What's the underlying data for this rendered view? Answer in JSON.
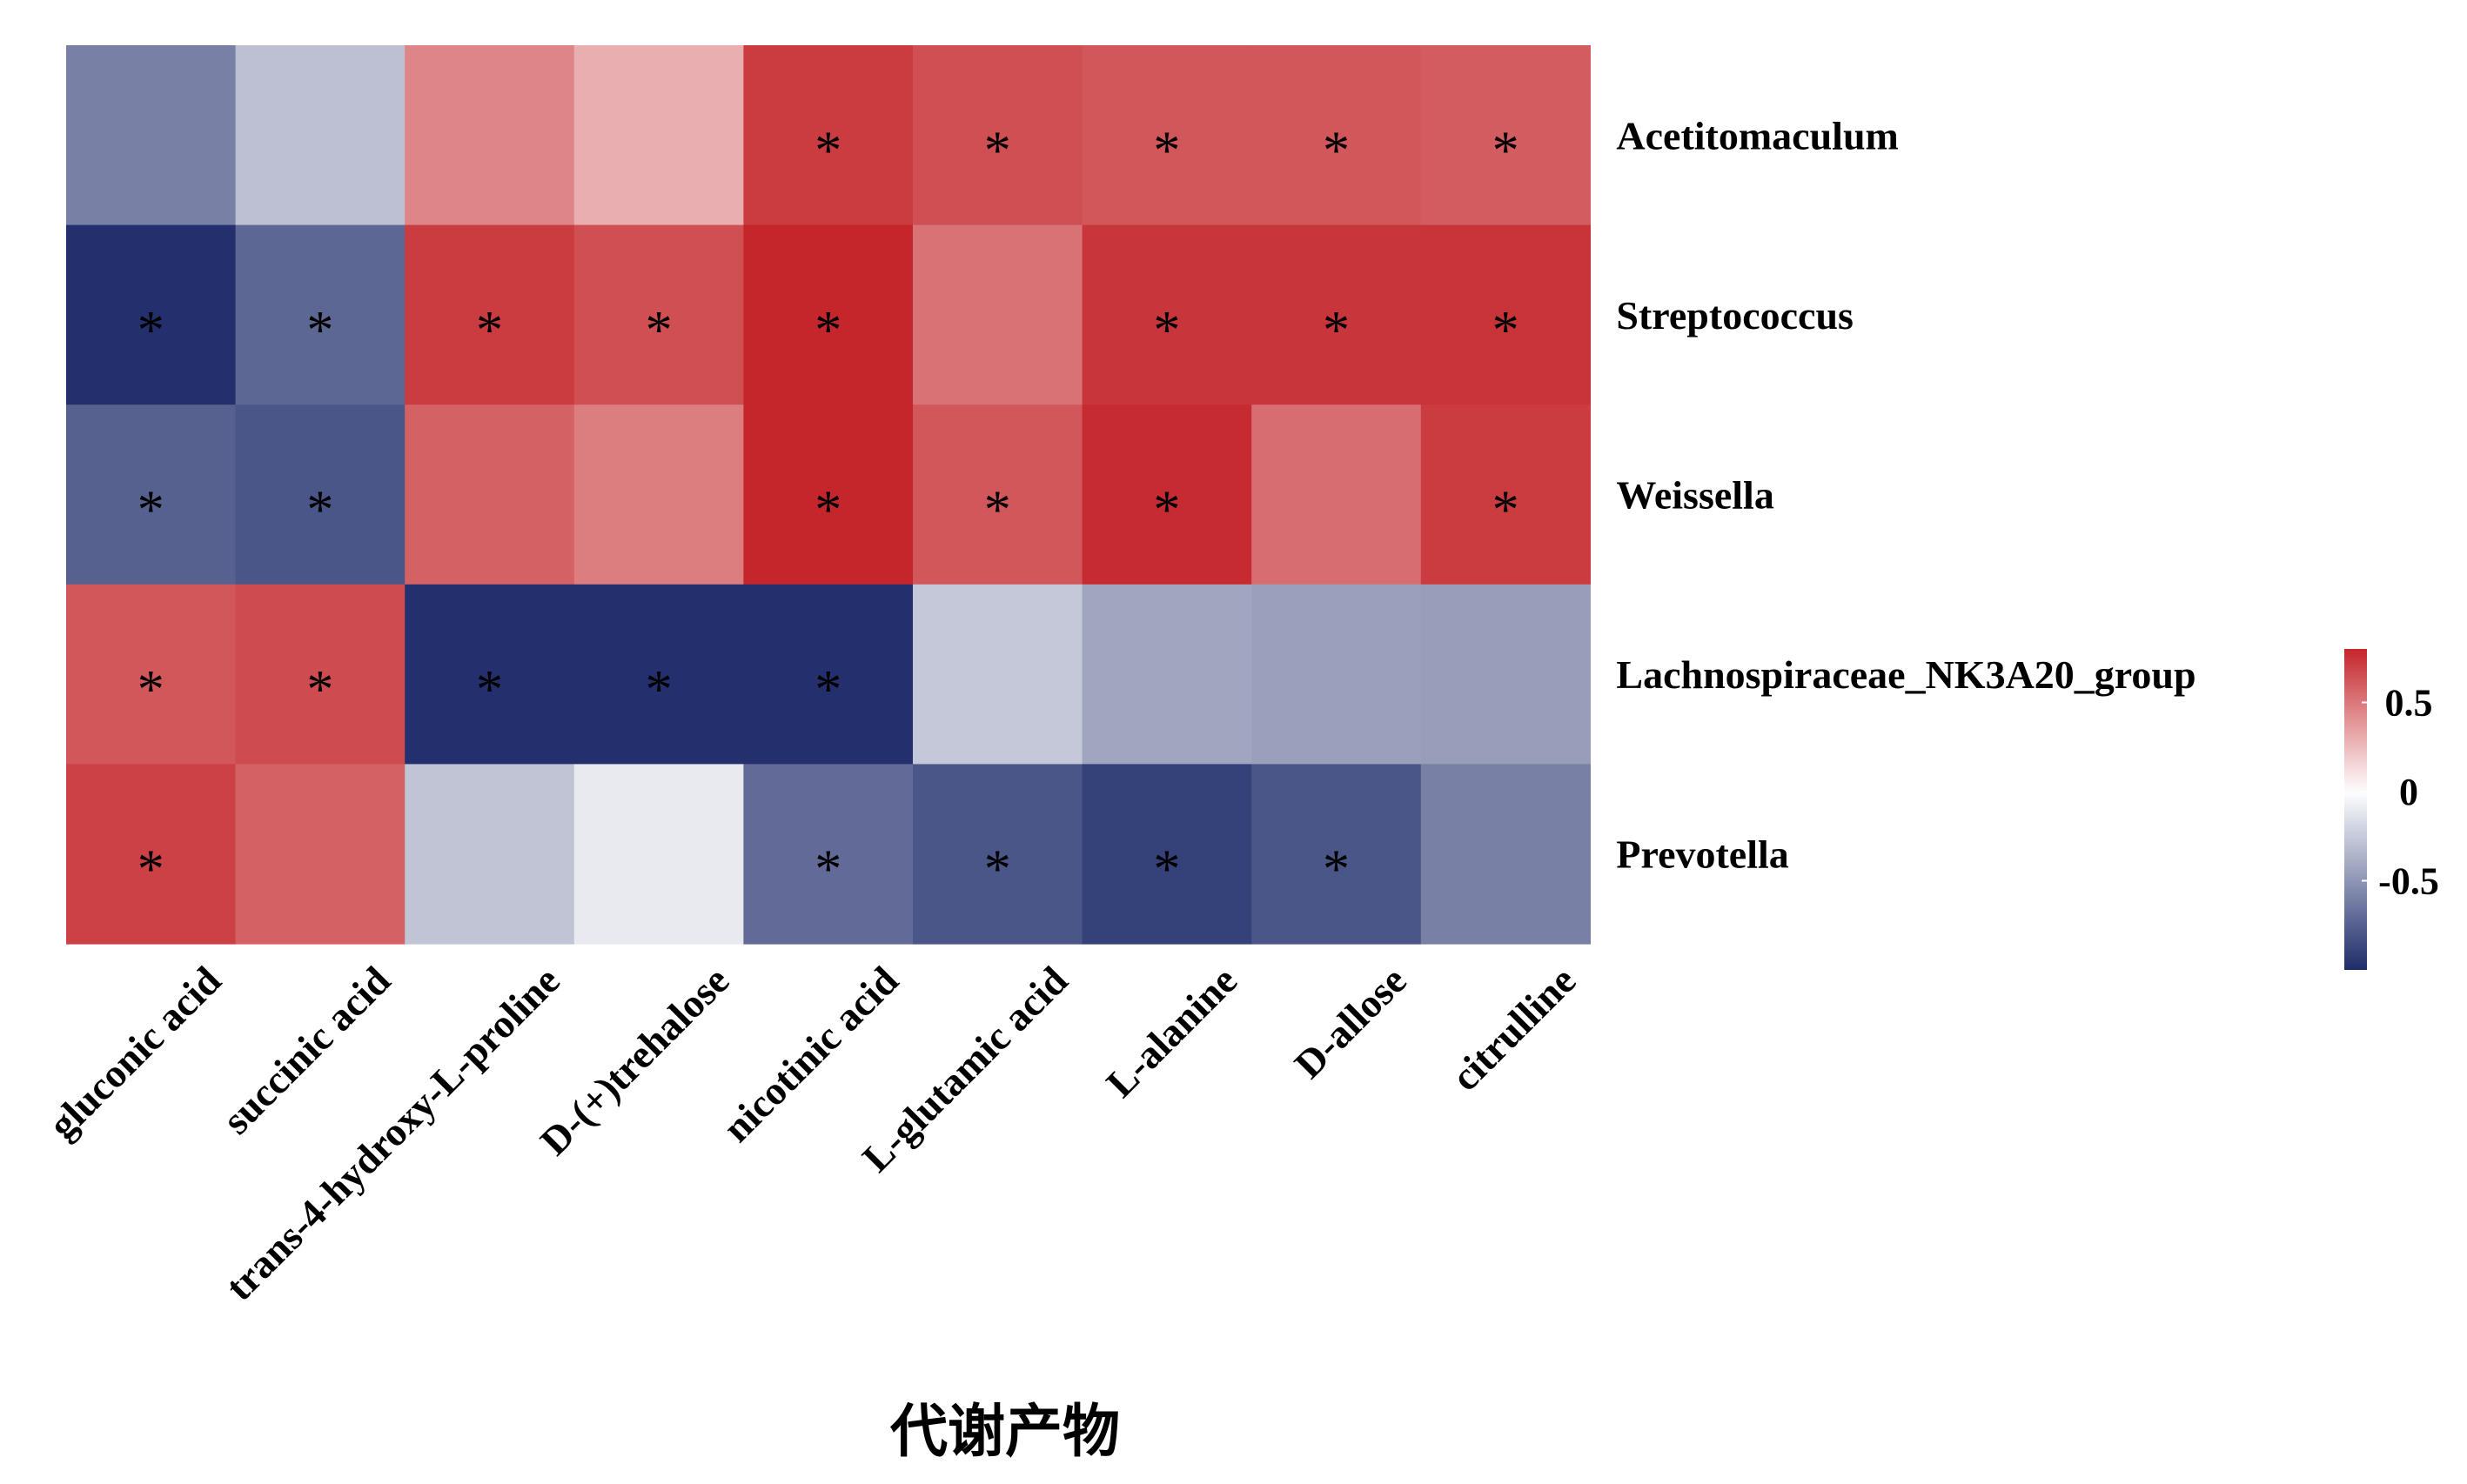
{
  "chart_data": {
    "type": "heatmap",
    "xlabel": "代谢产物",
    "ylabel": "",
    "rows": [
      "Acetitomaculum",
      "Streptococcus",
      "Weissella",
      "Lachnospiraceae_NK3A20_group",
      "Prevotella"
    ],
    "columns": [
      "gluconic acid",
      "succinic acid",
      "trans-4-hydroxy-L-proline",
      "D-(+)trehalose",
      "nicotinic acid",
      "L-glutamic acid",
      "L-alanine",
      "D-allose",
      "citrulline"
    ],
    "values": [
      [
        -0.6,
        -0.3,
        0.45,
        0.3,
        0.72,
        0.65,
        0.62,
        0.62,
        0.6
      ],
      [
        -0.98,
        -0.72,
        0.72,
        0.65,
        0.82,
        0.52,
        0.74,
        0.74,
        0.75
      ],
      [
        -0.75,
        -0.8,
        0.58,
        0.48,
        0.85,
        0.62,
        0.78,
        0.54,
        0.72
      ],
      [
        0.62,
        0.66,
        -0.98,
        -0.98,
        -0.98,
        -0.26,
        -0.42,
        -0.45,
        -0.46
      ],
      [
        0.7,
        0.58,
        -0.28,
        -0.1,
        -0.7,
        -0.8,
        -0.9,
        -0.8,
        -0.6
      ]
    ],
    "significant": [
      [
        false,
        false,
        false,
        false,
        true,
        true,
        true,
        true,
        true
      ],
      [
        true,
        true,
        true,
        true,
        true,
        false,
        true,
        true,
        true
      ],
      [
        true,
        true,
        false,
        false,
        true,
        true,
        true,
        false,
        true
      ],
      [
        true,
        true,
        true,
        true,
        true,
        false,
        false,
        false,
        false
      ],
      [
        true,
        false,
        false,
        false,
        true,
        true,
        true,
        true,
        false
      ]
    ],
    "significance_marker": "*",
    "color_scale": {
      "min": -1,
      "max": 0.8,
      "low_color": "#1e2c6a",
      "mid_color": "#ffffff",
      "high_color": "#c4262b",
      "ticks": [
        0.5,
        0,
        -0.5
      ],
      "tick_labels": [
        "0.5",
        "0",
        "-0.5"
      ]
    },
    "legend_position": "right"
  }
}
